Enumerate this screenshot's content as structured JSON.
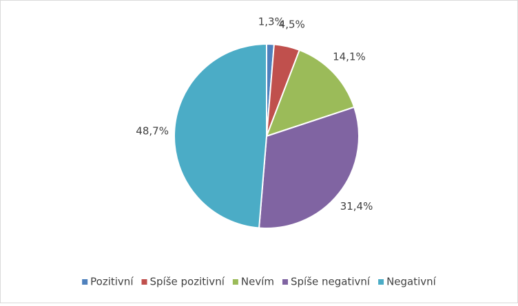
{
  "chart_data": {
    "type": "pie",
    "categories": [
      "Pozitivní",
      "Spíše pozitivní",
      "Nevím",
      "Spíše negativní",
      "Negativní"
    ],
    "values": [
      1.3,
      4.5,
      14.1,
      31.4,
      48.7
    ],
    "value_labels": [
      "1,3%",
      "4,5%",
      "14,1%",
      "31,4%",
      "48,7%"
    ],
    "colors": [
      "#4f81bd",
      "#c0504d",
      "#9bbb59",
      "#8064a2",
      "#4bacc6"
    ],
    "legend": "bottom"
  }
}
